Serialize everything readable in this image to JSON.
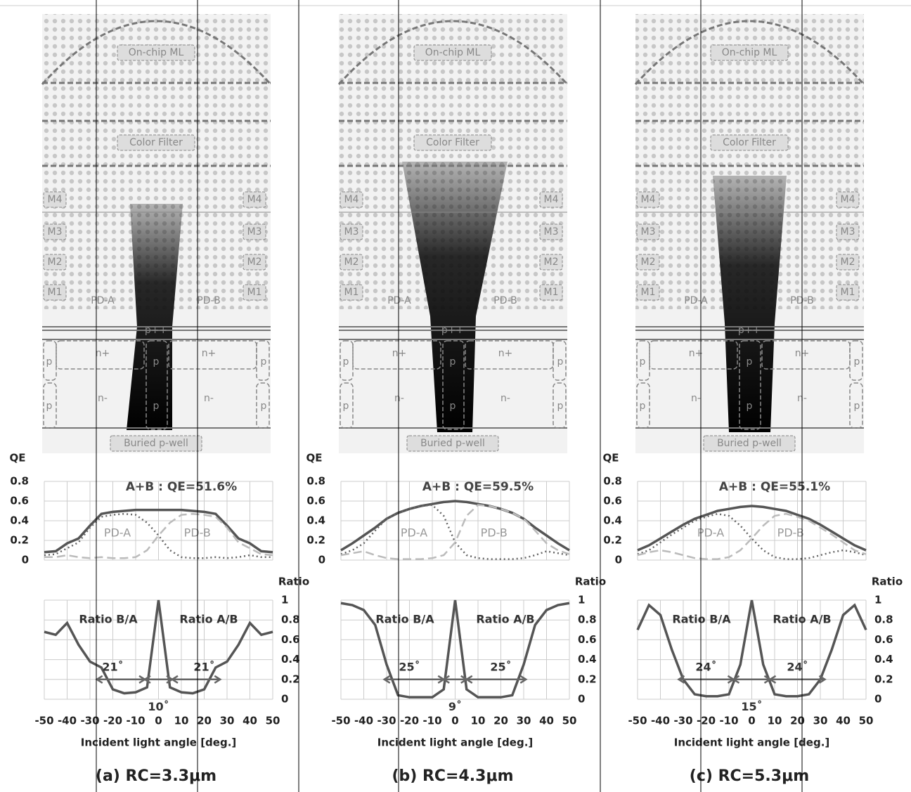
{
  "chart_data": [
    {
      "type": "line",
      "ylabel": "QE",
      "annotation": "A+B : QE=51.6%",
      "x": [
        -50,
        -45,
        -40,
        -35,
        -30,
        -25,
        -20,
        -15,
        -10,
        -5,
        0,
        5,
        10,
        15,
        20,
        25,
        30,
        35,
        40,
        45,
        50
      ],
      "xlim": [
        -50,
        50
      ],
      "xticks": [
        -50,
        -40,
        -30,
        -20,
        -10,
        0,
        10,
        20,
        30,
        40,
        50
      ],
      "ylim": [
        0,
        0.8
      ],
      "yticks": [
        0,
        0.2,
        0.4,
        0.6,
        0.8
      ],
      "grid": true,
      "series": [
        {
          "color": "#555555",
          "values": [
            0.08,
            0.09,
            0.17,
            0.22,
            0.35,
            0.47,
            0.49,
            0.5,
            0.51,
            0.51,
            0.51,
            0.51,
            0.51,
            0.5,
            0.49,
            0.47,
            0.35,
            0.22,
            0.17,
            0.09,
            0.08
          ]
        },
        {
          "name": "PD-A",
          "color": "#666666",
          "values": [
            0.05,
            0.06,
            0.12,
            0.18,
            0.33,
            0.44,
            0.46,
            0.47,
            0.46,
            0.38,
            0.25,
            0.1,
            0.03,
            0.02,
            0.02,
            0.03,
            0.02,
            0.03,
            0.05,
            0.03,
            0.03
          ]
        },
        {
          "name": "PD-B",
          "color": "#bbbbbb",
          "values": [
            0.03,
            0.03,
            0.05,
            0.03,
            0.02,
            0.03,
            0.02,
            0.02,
            0.03,
            0.1,
            0.25,
            0.38,
            0.46,
            0.47,
            0.46,
            0.44,
            0.33,
            0.18,
            0.12,
            0.06,
            0.05
          ]
        }
      ]
    },
    {
      "type": "line",
      "ylabel": "Ratio",
      "xlabel": "Incident light angle [deg.]",
      "annotations": [
        "Ratio B/A",
        "Ratio A/B",
        "21˚",
        "21˚",
        "10˚"
      ],
      "x": [
        -50,
        -45,
        -40,
        -35,
        -30,
        -25,
        -20,
        -15,
        -10,
        -5,
        0,
        5,
        10,
        15,
        20,
        25,
        30,
        35,
        40,
        45,
        50
      ],
      "xlim": [
        -50,
        50
      ],
      "xticks": [
        -50,
        -40,
        -30,
        -20,
        -10,
        0,
        10,
        20,
        30,
        40,
        50
      ],
      "ylim": [
        0,
        1
      ],
      "yticks": [
        0,
        0.2,
        0.4,
        0.6,
        0.8,
        1
      ],
      "grid": true,
      "series": [
        {
          "color": "#555555",
          "values": [
            0.68,
            0.65,
            0.77,
            0.55,
            0.38,
            0.32,
            0.1,
            0.06,
            0.07,
            0.12,
            1,
            0.12,
            0.07,
            0.06,
            0.1,
            0.32,
            0.38,
            0.55,
            0.77,
            0.65,
            0.68
          ]
        }
      ]
    },
    {
      "type": "line",
      "ylabel": "QE",
      "annotation": "A+B : QE=59.5%",
      "x": [
        -50,
        -45,
        -40,
        -35,
        -30,
        -25,
        -20,
        -15,
        -10,
        -5,
        0,
        5,
        10,
        15,
        20,
        25,
        30,
        35,
        40,
        45,
        50
      ],
      "xlim": [
        -50,
        50
      ],
      "xticks": [
        -50,
        -40,
        -30,
        -20,
        -10,
        0,
        10,
        20,
        30,
        40,
        50
      ],
      "ylim": [
        0,
        0.8
      ],
      "yticks": [
        0,
        0.2,
        0.4,
        0.6,
        0.8
      ],
      "grid": true,
      "series": [
        {
          "color": "#555555",
          "values": [
            0.1,
            0.17,
            0.25,
            0.33,
            0.42,
            0.48,
            0.52,
            0.55,
            0.57,
            0.59,
            0.6,
            0.59,
            0.57,
            0.55,
            0.52,
            0.48,
            0.42,
            0.33,
            0.25,
            0.17,
            0.1
          ]
        },
        {
          "name": "PD-A",
          "color": "#666666",
          "values": [
            0.06,
            0.1,
            0.17,
            0.3,
            0.42,
            0.48,
            0.52,
            0.55,
            0.56,
            0.45,
            0.18,
            0.05,
            0.02,
            0.01,
            0.01,
            0.01,
            0.02,
            0.05,
            0.09,
            0.07,
            0.05
          ]
        },
        {
          "name": "PD-B",
          "color": "#bbbbbb",
          "values": [
            0.05,
            0.07,
            0.09,
            0.05,
            0.02,
            0.01,
            0.01,
            0.01,
            0.02,
            0.05,
            0.18,
            0.45,
            0.56,
            0.55,
            0.52,
            0.48,
            0.42,
            0.3,
            0.17,
            0.1,
            0.06
          ]
        }
      ]
    },
    {
      "type": "line",
      "ylabel": "Ratio",
      "xlabel": "Incident light angle [deg.]",
      "annotations": [
        "Ratio B/A",
        "Ratio A/B",
        "25˚",
        "25˚",
        "9˚"
      ],
      "x": [
        -50,
        -45,
        -40,
        -35,
        -30,
        -25,
        -20,
        -15,
        -10,
        -5,
        0,
        5,
        10,
        15,
        20,
        25,
        30,
        35,
        40,
        45,
        50
      ],
      "xlim": [
        -50,
        50
      ],
      "xticks": [
        -50,
        -40,
        -30,
        -20,
        -10,
        0,
        10,
        20,
        30,
        40,
        50
      ],
      "ylim": [
        0,
        1
      ],
      "yticks": [
        0,
        0.2,
        0.4,
        0.6,
        0.8,
        1
      ],
      "grid": true,
      "series": [
        {
          "color": "#555555",
          "values": [
            0.97,
            0.95,
            0.9,
            0.75,
            0.35,
            0.04,
            0.02,
            0.02,
            0.02,
            0.1,
            1,
            0.1,
            0.02,
            0.02,
            0.02,
            0.04,
            0.35,
            0.75,
            0.9,
            0.95,
            0.97
          ]
        }
      ]
    },
    {
      "type": "line",
      "ylabel": "QE",
      "annotation": "A+B : QE=55.1%",
      "x": [
        -50,
        -45,
        -40,
        -35,
        -30,
        -25,
        -20,
        -15,
        -10,
        -5,
        0,
        5,
        10,
        15,
        20,
        25,
        30,
        35,
        40,
        45,
        50
      ],
      "xlim": [
        -50,
        50
      ],
      "xticks": [
        -50,
        -40,
        -30,
        -20,
        -10,
        0,
        10,
        20,
        30,
        40,
        50
      ],
      "ylim": [
        0,
        0.8
      ],
      "yticks": [
        0,
        0.2,
        0.4,
        0.6,
        0.8
      ],
      "grid": true,
      "series": [
        {
          "color": "#555555",
          "values": [
            0.1,
            0.15,
            0.22,
            0.29,
            0.36,
            0.42,
            0.46,
            0.5,
            0.52,
            0.54,
            0.55,
            0.54,
            0.52,
            0.5,
            0.46,
            0.42,
            0.36,
            0.29,
            0.22,
            0.15,
            0.1
          ]
        },
        {
          "name": "PD-A",
          "color": "#666666",
          "values": [
            0.06,
            0.1,
            0.18,
            0.26,
            0.33,
            0.4,
            0.44,
            0.47,
            0.45,
            0.35,
            0.22,
            0.1,
            0.03,
            0.01,
            0.01,
            0.02,
            0.05,
            0.08,
            0.1,
            0.08,
            0.05
          ]
        },
        {
          "name": "PD-B",
          "color": "#bbbbbb",
          "values": [
            0.05,
            0.08,
            0.1,
            0.08,
            0.05,
            0.02,
            0.01,
            0.01,
            0.03,
            0.1,
            0.22,
            0.35,
            0.45,
            0.47,
            0.44,
            0.4,
            0.33,
            0.26,
            0.18,
            0.1,
            0.06
          ]
        }
      ]
    },
    {
      "type": "line",
      "ylabel": "Ratio",
      "xlabel": "Incident light angle [deg.]",
      "annotations": [
        "Ratio B/A",
        "Ratio A/B",
        "24˚",
        "24˚",
        "15˚"
      ],
      "x": [
        -50,
        -45,
        -40,
        -35,
        -30,
        -25,
        -20,
        -15,
        -10,
        -5,
        0,
        5,
        10,
        15,
        20,
        25,
        30,
        35,
        40,
        45,
        50
      ],
      "xlim": [
        -50,
        50
      ],
      "xticks": [
        -50,
        -40,
        -30,
        -20,
        -10,
        0,
        10,
        20,
        30,
        40,
        50
      ],
      "ylim": [
        0,
        1
      ],
      "yticks": [
        0,
        0.2,
        0.4,
        0.6,
        0.8,
        1
      ],
      "grid": true,
      "series": [
        {
          "color": "#555555",
          "values": [
            0.7,
            0.95,
            0.85,
            0.5,
            0.2,
            0.05,
            0.03,
            0.03,
            0.05,
            0.35,
            1,
            0.35,
            0.05,
            0.03,
            0.03,
            0.05,
            0.2,
            0.5,
            0.85,
            0.95,
            0.7
          ]
        }
      ]
    }
  ],
  "panels": [
    {
      "caption": "(a) RC=3.3μm",
      "diagram": {
        "lens": "On-chip ML",
        "filter": "Color Filter",
        "metals": [
          "M4",
          "M3",
          "M2",
          "M1"
        ],
        "pd_a": "PD-A",
        "pd_b": "PD-B",
        "p_plus": "p++",
        "n_plus": "n+",
        "n_minus": "n-",
        "p": "p",
        "well": "Buried p-well"
      }
    },
    {
      "caption": "(b) RC=4.3μm",
      "diagram": {
        "lens": "On-chip ML",
        "filter": "Color Filter",
        "metals": [
          "M4",
          "M3",
          "M2",
          "M1"
        ],
        "pd_a": "PD-A",
        "pd_b": "PD-B",
        "p_plus": "p++",
        "n_plus": "n+",
        "n_minus": "n-",
        "p": "p",
        "well": "Buried p-well"
      }
    },
    {
      "caption": "(c) RC=5.3μm",
      "diagram": {
        "lens": "On-chip ML",
        "filter": "Color Filter",
        "metals": [
          "M4",
          "M3",
          "M2",
          "M1"
        ],
        "pd_a": "PD-A",
        "pd_b": "PD-B",
        "p_plus": "p++",
        "n_plus": "n+",
        "n_minus": "n-",
        "p": "p",
        "well": "Buried p-well"
      }
    }
  ]
}
